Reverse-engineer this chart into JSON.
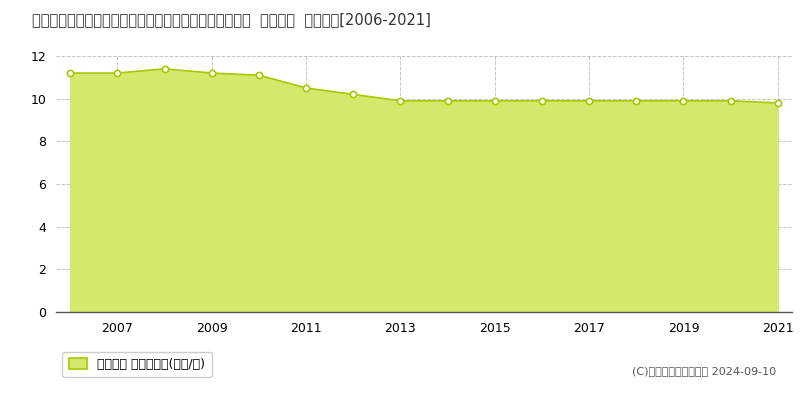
{
  "title": "埼玉県さいたま市岩槻区大字黒谷字久保１５０５番２外  地価公示  地価推移[2006-2021]",
  "years": [
    2006,
    2007,
    2008,
    2009,
    2010,
    2011,
    2012,
    2013,
    2014,
    2015,
    2016,
    2017,
    2018,
    2019,
    2020,
    2021
  ],
  "values": [
    11.2,
    11.2,
    11.4,
    11.2,
    11.1,
    10.5,
    10.2,
    9.9,
    9.9,
    9.9,
    9.9,
    9.9,
    9.9,
    9.9,
    9.9,
    9.8
  ],
  "ylim": [
    0,
    12
  ],
  "yticks": [
    0,
    2,
    4,
    6,
    8,
    10,
    12
  ],
  "fill_color": "#d4e96b",
  "fill_alpha": 1.0,
  "line_color": "#a8c800",
  "marker_color": "white",
  "marker_edge_color": "#a8c800",
  "bg_color": "#ffffff",
  "grid_color": "#aaaaaa",
  "legend_label": "地価公示 平均坪単価(万円/坪)",
  "copyright_text": "(C)土地価格ドットコム 2024-09-10",
  "title_fontsize": 10.5,
  "axis_fontsize": 9,
  "legend_fontsize": 9,
  "copyright_fontsize": 8
}
